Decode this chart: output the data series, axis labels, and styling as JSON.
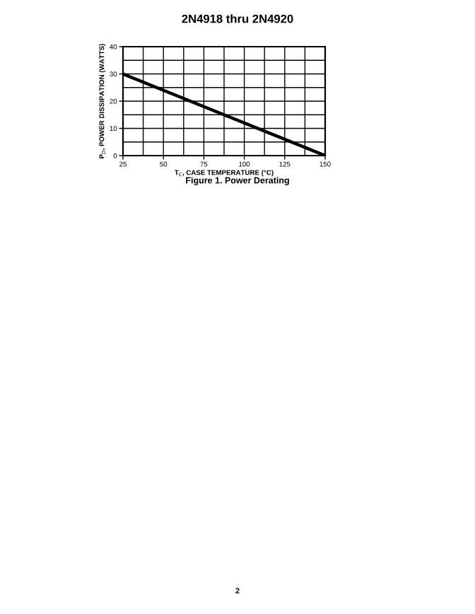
{
  "chart_data": {
    "type": "line",
    "title": "2N4918 thru 2N4920",
    "xlabel": "T$_{C}$, CASE TEMPERATURE (°C)",
    "ylabel": "P$_{D}$, POWER DISSIPATION (WATTS)",
    "x": [
      25,
      150
    ],
    "series": [
      {
        "color": "#000000",
        "values": [
          30,
          0
        ]
      }
    ],
    "xlim": [
      25,
      150
    ],
    "xticks": [
      25,
      50,
      75,
      100,
      125,
      150
    ],
    "ylim": [
      0,
      40
    ],
    "yticks": [
      0,
      10,
      20,
      30,
      40
    ],
    "grid": true,
    "annotations": [
      "Figure 1. Power Derating",
      "2"
    ]
  }
}
